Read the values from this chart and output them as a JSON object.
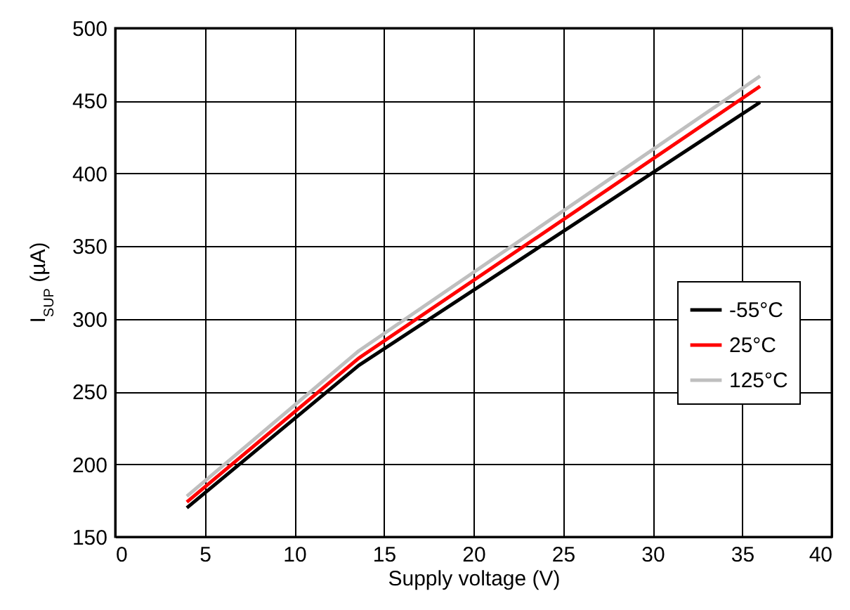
{
  "chart_data": {
    "type": "line",
    "xlabel": "Supply voltage (V)",
    "ylabel": "I$_{SUP}$ (µA)",
    "x": [
      4,
      13.6,
      36
    ],
    "series": [
      {
        "name": "-55°C",
        "color": "#000000",
        "values": [
          170,
          268,
          449
        ]
      },
      {
        "name": "25°C",
        "color": "#ff0000",
        "values": [
          174,
          273,
          460
        ]
      },
      {
        "name": "125°C",
        "color": "#bfbfbf",
        "values": [
          178,
          278,
          467
        ]
      }
    ],
    "xlim": [
      0,
      40
    ],
    "xticks": [
      0,
      5,
      10,
      15,
      20,
      25,
      30,
      35,
      40
    ],
    "ylim": [
      150,
      500
    ],
    "yticks": [
      150,
      200,
      250,
      300,
      350,
      400,
      450,
      500
    ],
    "grid": true,
    "legend": "right",
    "marker": "none",
    "line_style": "solid"
  }
}
